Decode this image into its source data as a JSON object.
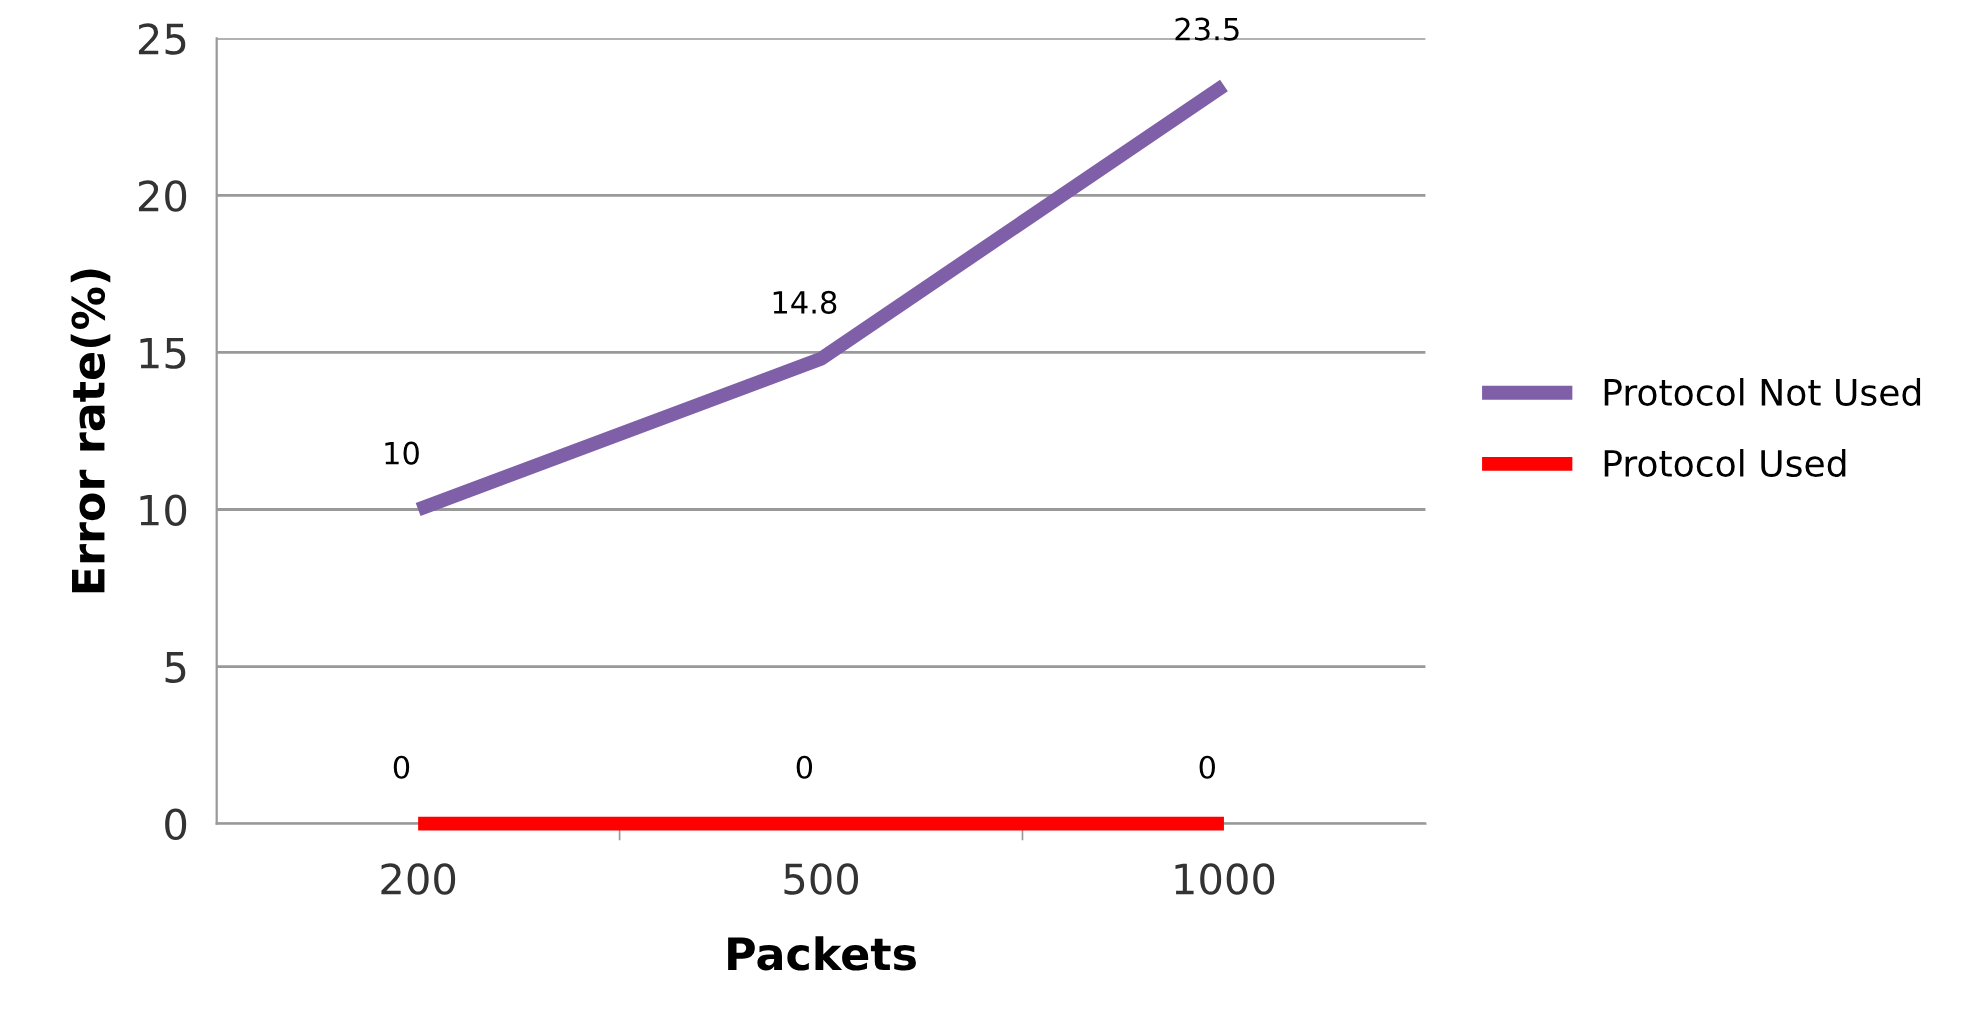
{
  "chart_data": {
    "type": "line",
    "xlabel": "Packets",
    "ylabel": "Error rate(%)",
    "categories": [
      "200",
      "500",
      "1000"
    ],
    "series": [
      {
        "name": "Protocol Not Used",
        "color": "#7f60a8",
        "values": [
          10,
          14.8,
          23.5
        ]
      },
      {
        "name": "Protocol Used",
        "color": "#ff0000",
        "values": [
          0,
          0,
          0
        ]
      }
    ],
    "ylim": [
      0,
      25
    ],
    "yticks": [
      0,
      5,
      10,
      15,
      20,
      25
    ],
    "grid": "y",
    "legend": "right",
    "data_labels": true,
    "marker": "none",
    "line_style": "solid"
  }
}
